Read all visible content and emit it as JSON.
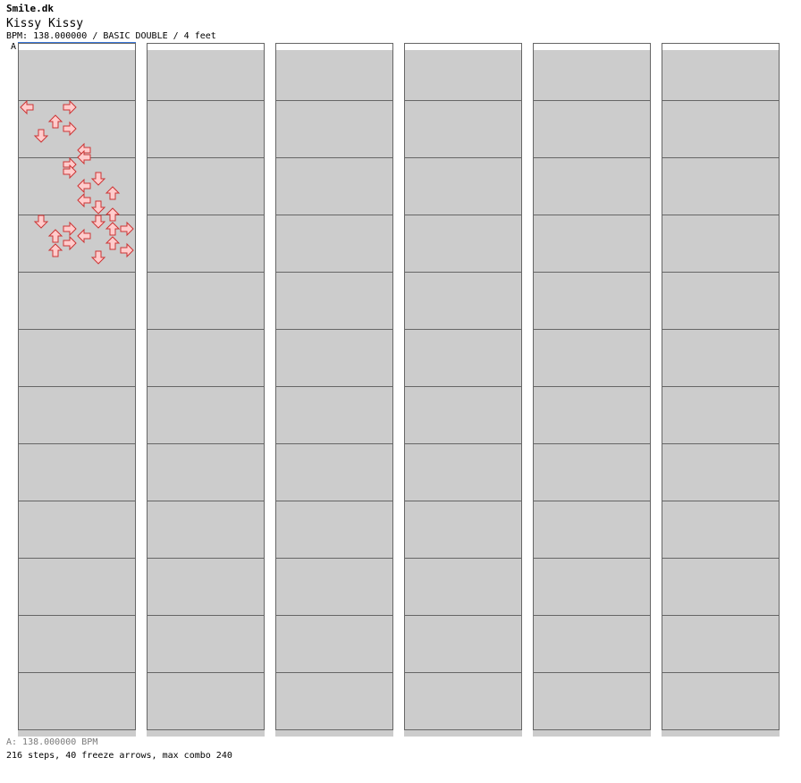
{
  "header": {
    "artist": "Smile.dk",
    "title": "Kissy Kissy",
    "info": "BPM: 138.000000 / BASIC DOUBLE / 4 feet",
    "marker": "A"
  },
  "footer": {
    "bpm_line": "A: 138.000000 BPM",
    "stats": "216 steps, 40 freeze arrows, max combo 240"
  },
  "colors": {
    "stripe": "#cccccc",
    "bar": "#666666",
    "arrow_fill": "#ffcccc",
    "arrow_stroke": "#cc3333",
    "freeze_fill": "#ccffcc",
    "freeze_stroke": "#339933"
  },
  "chart_data": {
    "type": "step-chart",
    "beats_per_measure": 4,
    "measures_per_column": 12,
    "lanes": [
      "L1",
      "D1",
      "U1",
      "R1",
      "L2",
      "D2",
      "U2",
      "R2"
    ],
    "notes": [
      {
        "b": 4,
        "l": 0,
        "len": 0
      },
      {
        "b": 4,
        "l": 3,
        "len": 0
      },
      {
        "b": 5,
        "l": 2,
        "len": 0
      },
      {
        "b": 5.5,
        "l": 3,
        "len": 0
      },
      {
        "b": 6,
        "l": 1,
        "len": 0
      },
      {
        "b": 7,
        "l": 4,
        "len": 0
      },
      {
        "b": 7.5,
        "l": 4,
        "len": 0
      },
      {
        "b": 8,
        "l": 3,
        "len": 0
      },
      {
        "b": 8.5,
        "l": 3,
        "len": 0
      },
      {
        "b": 9,
        "l": 5,
        "len": 0
      },
      {
        "b": 9.5,
        "l": 4,
        "len": 0
      },
      {
        "b": 10,
        "l": 6,
        "len": 0
      },
      {
        "b": 10.5,
        "l": 4,
        "len": 0
      },
      {
        "b": 11,
        "l": 5,
        "len": 0
      },
      {
        "b": 11.5,
        "l": 6,
        "len": 0
      },
      {
        "b": 12,
        "l": 5,
        "len": 0
      },
      {
        "b": 12.5,
        "l": 6,
        "len": 0
      },
      {
        "b": 12.5,
        "l": 7,
        "len": 0
      },
      {
        "b": 13,
        "l": 4,
        "len": 0
      },
      {
        "b": 13.5,
        "l": 6,
        "len": 0
      },
      {
        "b": 14,
        "l": 7,
        "len": 0
      },
      {
        "b": 14.5,
        "l": 5,
        "len": 0
      },
      {
        "b": 12,
        "l": 1,
        "len": 0
      },
      {
        "b": 12.5,
        "l": 3,
        "len": 0
      },
      {
        "b": 13,
        "l": 2,
        "len": 0
      },
      {
        "b": 13.5,
        "l": 3,
        "len": 0
      },
      {
        "b": 14,
        "l": 2,
        "len": 0
      }
    ]
  }
}
